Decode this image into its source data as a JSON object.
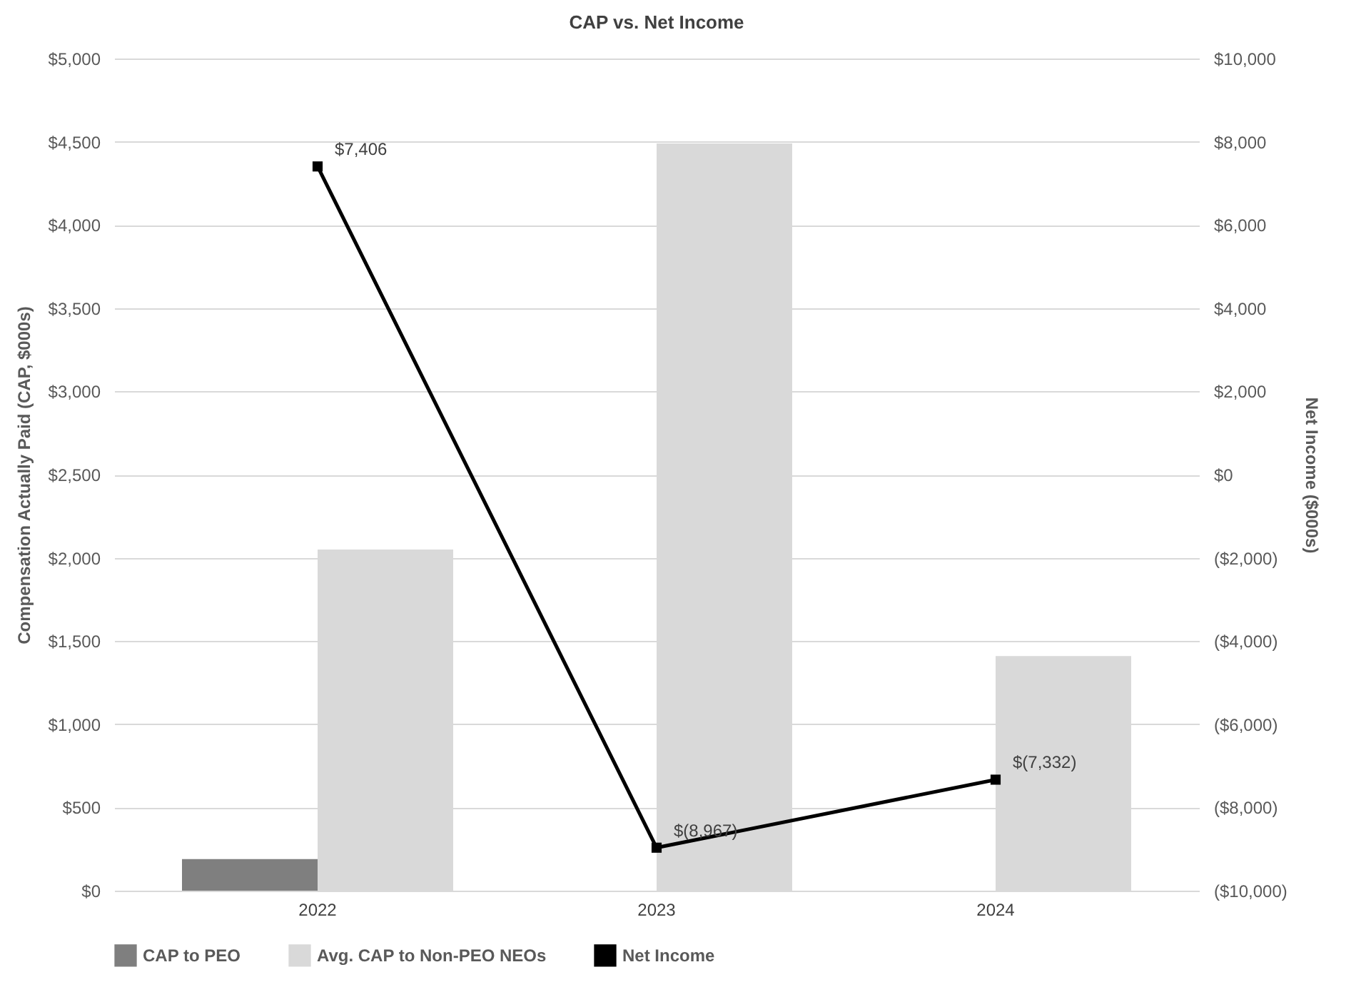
{
  "chart_data": {
    "type": "bar",
    "title": "CAP vs. Net Income",
    "xlabel": null,
    "ylabel": "Compensation Actually Paid (CAP, $000s)",
    "y2label": "Net Income ($000s)",
    "categories": [
      "2022",
      "2023",
      "2024"
    ],
    "series": [
      {
        "name": "CAP to PEO",
        "color": "#7f7f7f",
        "values": [
          190,
          null,
          null
        ]
      },
      {
        "name": "Avg. CAP to Non-PEO NEOs",
        "color": "#d9d9d9",
        "values": [
          2050,
          4490,
          1410
        ]
      },
      {
        "name": "Net Income",
        "type": "line",
        "axis": "y2",
        "color": "#000000",
        "marker": "square",
        "values": [
          7406,
          -8967,
          -7332
        ],
        "value_labels": [
          "$7,406",
          "$(8,967)",
          "$(7,332)"
        ]
      }
    ],
    "ylim": [
      0,
      5000
    ],
    "yticks": [
      {
        "value": 0,
        "label": "$0"
      },
      {
        "value": 500,
        "label": "$500"
      },
      {
        "value": 1000,
        "label": "$1,000"
      },
      {
        "value": 1500,
        "label": "$1,500"
      },
      {
        "value": 2000,
        "label": "$2,000"
      },
      {
        "value": 2500,
        "label": "$2,500"
      },
      {
        "value": 3000,
        "label": "$3,000"
      },
      {
        "value": 3500,
        "label": "$3,500"
      },
      {
        "value": 4000,
        "label": "$4,000"
      },
      {
        "value": 4500,
        "label": "$4,500"
      },
      {
        "value": 5000,
        "label": "$5,000"
      }
    ],
    "y2lim": [
      -10000,
      10000
    ],
    "y2ticks": [
      {
        "value": -10000,
        "label": "($10,000)"
      },
      {
        "value": -8000,
        "label": "($8,000)"
      },
      {
        "value": -6000,
        "label": "($6,000)"
      },
      {
        "value": -4000,
        "label": "($4,000)"
      },
      {
        "value": -2000,
        "label": "($2,000)"
      },
      {
        "value": 0,
        "label": "$0"
      },
      {
        "value": 2000,
        "label": "$2,000"
      },
      {
        "value": 4000,
        "label": "$4,000"
      },
      {
        "value": 6000,
        "label": "$6,000"
      },
      {
        "value": 8000,
        "label": "$8,000"
      },
      {
        "value": 10000,
        "label": "$10,000"
      }
    ],
    "grid": "y",
    "legend": "bottom"
  }
}
